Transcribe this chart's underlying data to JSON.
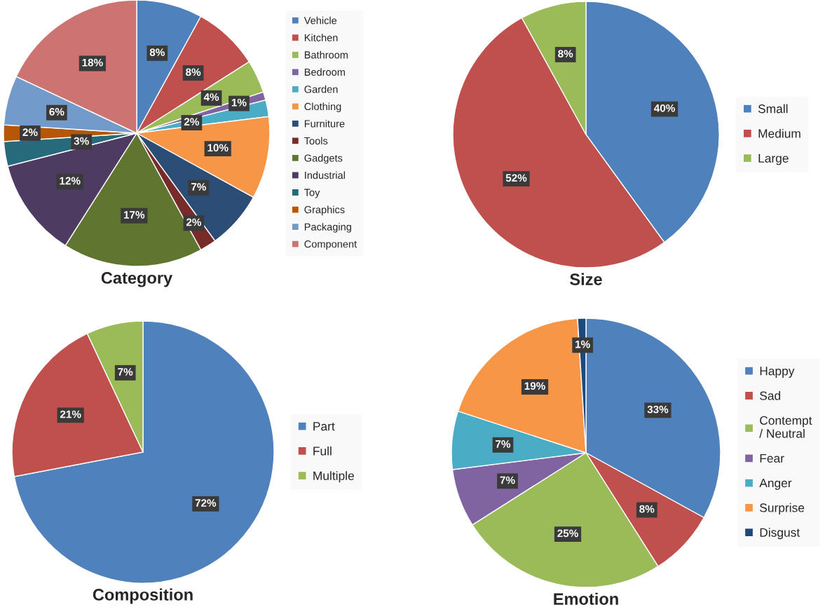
{
  "chart_data": [
    {
      "type": "pie",
      "title": "Category",
      "legend": "right",
      "categories": [
        "Vehicle",
        "Kitchen",
        "Bathroom",
        "Bedroom",
        "Garden",
        "Clothing",
        "Furniture",
        "Tools",
        "Gadgets",
        "Industrial",
        "Toy",
        "Graphics",
        "Packaging",
        "Component"
      ],
      "values": [
        8,
        8,
        4,
        1,
        2,
        10,
        7,
        2,
        17,
        12,
        3,
        2,
        6,
        18
      ],
      "value_labels": [
        "8%",
        "8%",
        "4%",
        "1%",
        "2%",
        "10%",
        "7%",
        "2%",
        "17%",
        "12%",
        "3%",
        "2%",
        "6%",
        "18%"
      ],
      "colors": [
        "#4f81bd",
        "#c0504d",
        "#9bbb59",
        "#8064a2",
        "#4bacc6",
        "#f79646",
        "#2c4d75",
        "#772c2a",
        "#5f7530",
        "#4d3b62",
        "#276a7c",
        "#b65708",
        "#729aca",
        "#cd7371"
      ]
    },
    {
      "type": "pie",
      "title": "Size",
      "legend": "right",
      "categories": [
        "Small",
        "Medium",
        "Large"
      ],
      "values": [
        40,
        52,
        8
      ],
      "value_labels": [
        "40%",
        "52%",
        "8%"
      ],
      "colors": [
        "#4f81bd",
        "#c0504d",
        "#9bbb59"
      ]
    },
    {
      "type": "pie",
      "title": "Composition",
      "legend": "right",
      "categories": [
        "Part",
        "Full",
        "Multiple"
      ],
      "values": [
        72,
        21,
        7
      ],
      "value_labels": [
        "72%",
        "21%",
        "7%"
      ],
      "colors": [
        "#4f81bd",
        "#c0504d",
        "#9bbb59"
      ]
    },
    {
      "type": "pie",
      "title": "Emotion",
      "legend": "right",
      "categories": [
        "Happy",
        "Sad",
        "Contempt\n/ Neutral",
        "Fear",
        "Anger",
        "Surprise",
        "Disgust"
      ],
      "values": [
        33,
        8,
        25,
        7,
        7,
        19,
        1
      ],
      "value_labels": [
        "33%",
        "8%",
        "25%",
        "7%",
        "7%",
        "19%",
        "1%"
      ],
      "colors": [
        "#4f81bd",
        "#c0504d",
        "#9bbb59",
        "#8064a2",
        "#4bacc6",
        "#f79646",
        "#1f497d"
      ]
    }
  ]
}
